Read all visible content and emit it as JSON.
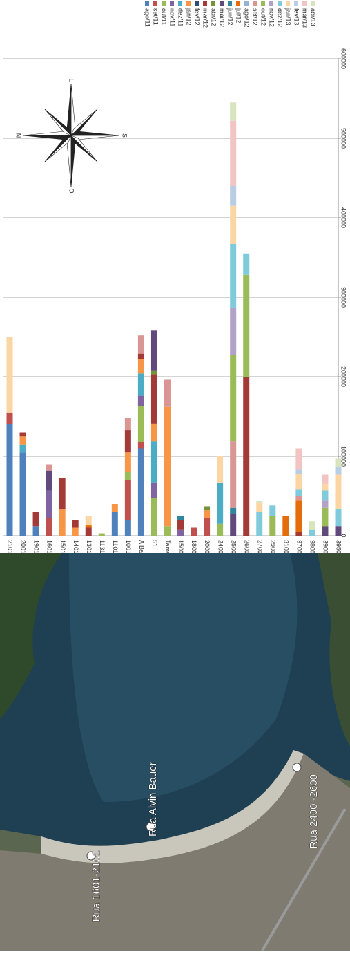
{
  "chart_data": {
    "type": "bar",
    "stacked": true,
    "legend": "top",
    "grid": true,
    "categories": [
      "2101",
      "2001",
      "1901",
      "1601",
      "1501",
      "1401",
      "1301",
      "1131",
      "1101",
      "1001",
      "A Bauer",
      "51",
      "Tamandaré",
      "1500",
      "1800",
      "2000",
      "2400",
      "2500",
      "2600",
      "2700",
      "2900",
      "3100",
      "3700",
      "3800",
      "3900",
      "3950"
    ],
    "ylim": [
      0,
      600000
    ],
    "yticks": [
      0,
      100000,
      200000,
      300000,
      400000,
      500000,
      600000
    ],
    "series": [
      {
        "name": "ago/11",
        "color": "#4f81bd",
        "values": [
          140000,
          105000,
          12000,
          0,
          0,
          0,
          0,
          0,
          30000,
          20000,
          110000,
          0,
          0,
          0,
          0,
          0,
          0,
          0,
          0,
          0,
          0,
          0,
          0,
          0,
          0,
          0
        ]
      },
      {
        "name": "set/11",
        "color": "#c0504d",
        "values": [
          15000,
          0,
          0,
          22000,
          0,
          0,
          0,
          0,
          0,
          50000,
          8000,
          0,
          0,
          0,
          10000,
          22000,
          0,
          0,
          0,
          0,
          0,
          0,
          0,
          0,
          0,
          0
        ]
      },
      {
        "name": "out/11",
        "color": "#9bbb59",
        "values": [
          0,
          0,
          0,
          0,
          0,
          0,
          0,
          3000,
          0,
          10000,
          45000,
          47000,
          12000,
          0,
          0,
          0,
          15000,
          0,
          0,
          0,
          0,
          0,
          0,
          0,
          0,
          0
        ]
      },
      {
        "name": "nov/11",
        "color": "#8064a2",
        "values": [
          0,
          0,
          0,
          35000,
          0,
          0,
          0,
          0,
          0,
          0,
          13000,
          20000,
          0,
          8000,
          0,
          0,
          0,
          0,
          0,
          0,
          0,
          0,
          0,
          0,
          0,
          0
        ]
      },
      {
        "name": "dez/11",
        "color": "#4bacc6",
        "values": [
          0,
          10000,
          0,
          0,
          0,
          0,
          0,
          0,
          0,
          0,
          28000,
          52000,
          0,
          0,
          0,
          0,
          52000,
          0,
          0,
          0,
          0,
          0,
          0,
          0,
          0,
          0
        ]
      },
      {
        "name": "jan/12",
        "color": "#f79646",
        "values": [
          0,
          10000,
          0,
          0,
          33000,
          10000,
          0,
          0,
          10000,
          25000,
          18000,
          22000,
          150000,
          0,
          0,
          10000,
          0,
          0,
          0,
          0,
          0,
          0,
          0,
          0,
          0,
          0
        ]
      },
      {
        "name": "fev/12",
        "color": "#2c4d75",
        "values": [
          0,
          0,
          0,
          0,
          0,
          0,
          0,
          0,
          0,
          0,
          0,
          0,
          0,
          0,
          0,
          0,
          0,
          0,
          0,
          0,
          0,
          0,
          0,
          0,
          0,
          0
        ]
      },
      {
        "name": "mar/12",
        "color": "#a33a37",
        "values": [
          0,
          5000,
          18000,
          0,
          40000,
          10000,
          10000,
          0,
          0,
          28000,
          7000,
          62000,
          0,
          12000,
          0,
          0,
          0,
          0,
          200000,
          0,
          0,
          0,
          5000,
          0,
          0,
          0
        ]
      },
      {
        "name": "abr/12",
        "color": "#76923c",
        "values": [
          0,
          0,
          0,
          0,
          0,
          0,
          0,
          0,
          0,
          0,
          0,
          5000,
          0,
          0,
          0,
          5000,
          0,
          0,
          0,
          0,
          0,
          0,
          0,
          0,
          0,
          0
        ]
      },
      {
        "name": "mai/12",
        "color": "#5f4a7b",
        "values": [
          0,
          0,
          0,
          25000,
          0,
          0,
          0,
          0,
          0,
          0,
          0,
          50000,
          0,
          0,
          0,
          0,
          0,
          27000,
          0,
          0,
          0,
          0,
          0,
          0,
          12000,
          12000
        ]
      },
      {
        "name": "jun/12",
        "color": "#31859c",
        "values": [
          0,
          0,
          0,
          0,
          0,
          0,
          0,
          0,
          0,
          0,
          0,
          0,
          0,
          5000,
          0,
          0,
          0,
          8000,
          0,
          0,
          0,
          0,
          0,
          0,
          0,
          0
        ]
      },
      {
        "name": "jul/12",
        "color": "#e46c0a",
        "values": [
          0,
          0,
          0,
          0,
          0,
          0,
          3000,
          0,
          0,
          0,
          0,
          0,
          0,
          0,
          0,
          0,
          0,
          0,
          0,
          0,
          0,
          25000,
          40000,
          0,
          0,
          0
        ]
      },
      {
        "name": "ago/12",
        "color": "#95b3d7",
        "values": [
          0,
          0,
          0,
          0,
          0,
          0,
          0,
          0,
          0,
          0,
          0,
          0,
          0,
          0,
          0,
          0,
          0,
          0,
          0,
          0,
          0,
          0,
          0,
          0,
          0,
          0
        ]
      },
      {
        "name": "set/12",
        "color": "#d99694",
        "values": [
          0,
          0,
          0,
          8000,
          0,
          0,
          0,
          0,
          0,
          15000,
          23000,
          0,
          35000,
          0,
          0,
          0,
          0,
          84000,
          0,
          0,
          0,
          0,
          5000,
          0,
          0,
          0
        ]
      },
      {
        "name": "out/12",
        "color": "#9bbb59",
        "values": [
          0,
          0,
          0,
          0,
          0,
          0,
          0,
          0,
          0,
          0,
          0,
          0,
          0,
          0,
          0,
          0,
          0,
          108000,
          128000,
          0,
          25000,
          0,
          0,
          0,
          23000,
          0
        ]
      },
      {
        "name": "nov/12",
        "color": "#b3a2c7",
        "values": [
          0,
          0,
          0,
          0,
          0,
          0,
          0,
          0,
          0,
          0,
          0,
          0,
          0,
          0,
          0,
          0,
          0,
          60000,
          0,
          0,
          0,
          0,
          0,
          0,
          10000,
          0
        ]
      },
      {
        "name": "dez/12",
        "color": "#7fcbdc",
        "values": [
          0,
          0,
          0,
          0,
          0,
          0,
          0,
          0,
          0,
          0,
          0,
          0,
          0,
          0,
          0,
          0,
          0,
          80000,
          27000,
          30000,
          13000,
          0,
          8000,
          7000,
          12000,
          22000
        ]
      },
      {
        "name": "jan/13",
        "color": "#fcd5a5",
        "values": [
          95000,
          0,
          0,
          0,
          0,
          0,
          12000,
          0,
          0,
          0,
          0,
          0,
          0,
          0,
          0,
          0,
          33000,
          48000,
          0,
          12000,
          0,
          0,
          20000,
          0,
          8000,
          43000
        ]
      },
      {
        "name": "fev/13",
        "color": "#b9cde5",
        "values": [
          0,
          0,
          0,
          0,
          0,
          0,
          0,
          0,
          0,
          0,
          0,
          0,
          0,
          0,
          0,
          0,
          0,
          25000,
          0,
          0,
          0,
          0,
          5000,
          0,
          0,
          10000
        ]
      },
      {
        "name": "mar/13",
        "color": "#f2c4c3",
        "values": [
          0,
          0,
          0,
          0,
          0,
          0,
          0,
          0,
          0,
          0,
          0,
          0,
          0,
          0,
          0,
          0,
          0,
          82000,
          0,
          0,
          0,
          0,
          27000,
          0,
          12000,
          0
        ]
      },
      {
        "name": "abr/13",
        "color": "#d7e4bd",
        "values": [
          0,
          0,
          0,
          0,
          0,
          0,
          0,
          0,
          0,
          0,
          0,
          0,
          0,
          0,
          0,
          0,
          0,
          23000,
          0,
          2000,
          0,
          0,
          0,
          11000,
          0,
          10000
        ]
      }
    ]
  },
  "compass": {
    "north": "N",
    "south": "S",
    "east": "L",
    "west": "O"
  },
  "map_labels": [
    "Rua 1601-2101",
    "Rua Alvin Bauer",
    "Rua 2400 -2600"
  ]
}
